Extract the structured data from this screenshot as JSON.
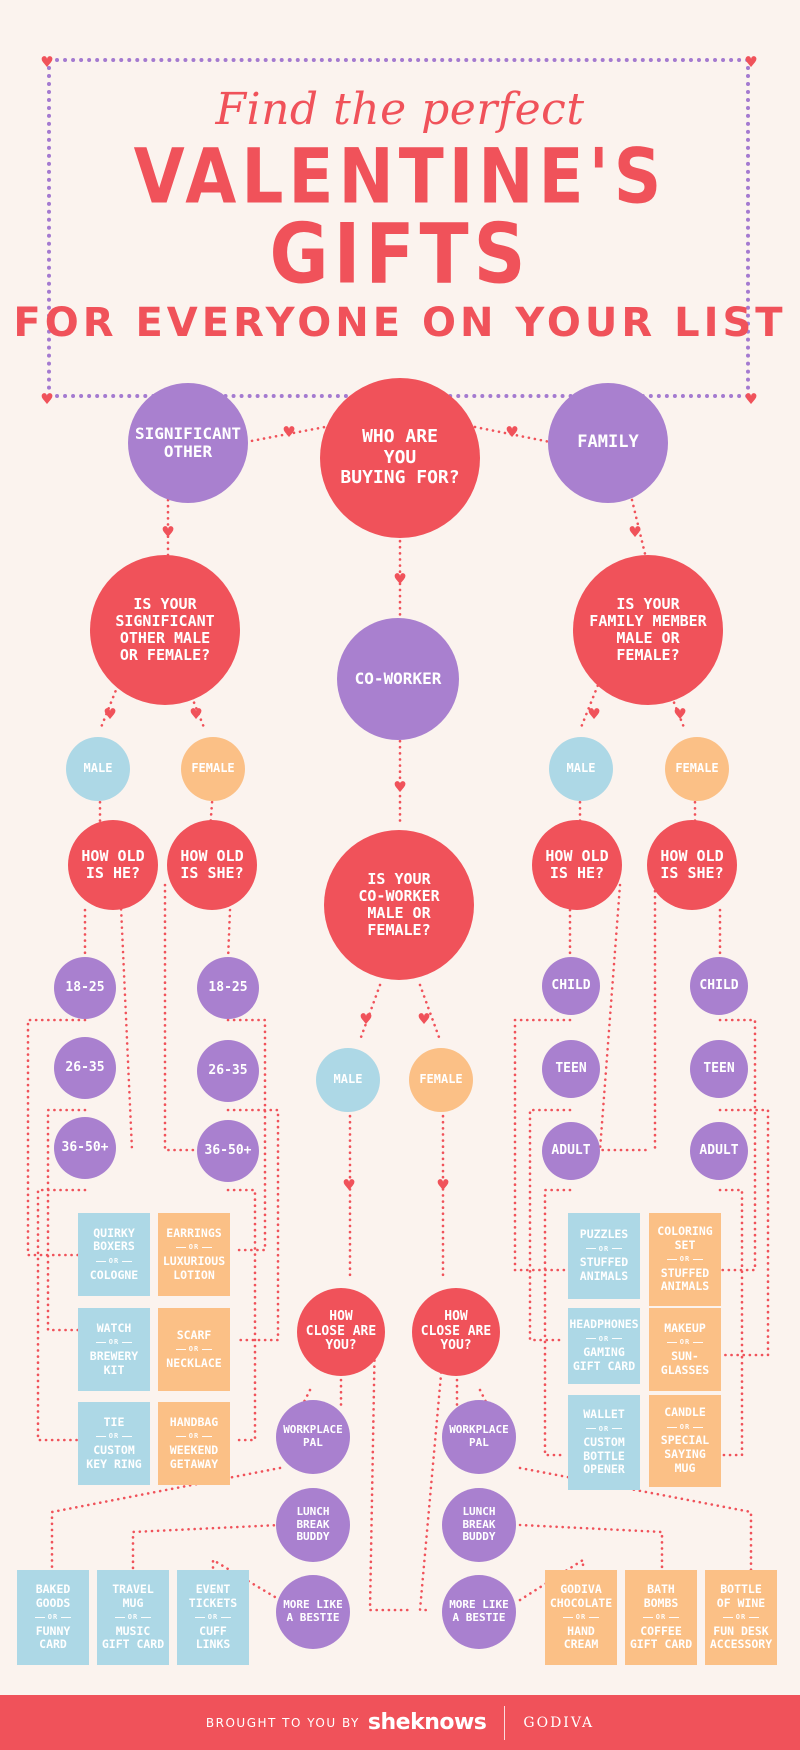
{
  "title": {
    "line1": "Find the perfect",
    "line2": "VALENTINE'S",
    "line3": "GIFTS",
    "line4": "FOR EVERYONE ON YOUR LIST"
  },
  "colors": {
    "red": "#f0525a",
    "purple": "#a980cf",
    "blue": "#add8e6",
    "orange": "#fbc086",
    "background": "#fbf3ee"
  },
  "nodes": {
    "start": "WHO ARE\nYOU\nBUYING FOR?",
    "significant_other": "SIGNIFICANT\nOTHER",
    "family": "FAMILY",
    "coworker": "CO-WORKER",
    "so_question": "IS YOUR\nSIGNIFICANT\nOTHER MALE\nOR FEMALE?",
    "family_question": "IS YOUR\nFAMILY MEMBER\nMALE OR\nFEMALE?",
    "coworker_question": "IS YOUR\nCO-WORKER\nMALE OR\nFEMALE?",
    "male": "MALE",
    "female": "FEMALE",
    "how_old_he": "HOW OLD\nIS HE?",
    "how_old_she": "HOW OLD\nIS SHE?",
    "age_18_25": "18-25",
    "age_26_35": "26-35",
    "age_36_50": "36-50+",
    "child": "CHILD",
    "teen": "TEEN",
    "adult": "ADULT",
    "how_close": "HOW\nCLOSE ARE\nYOU?",
    "workplace_pal": "WORKPLACE\nPAL",
    "lunch_buddy": "LUNCH\nBREAK\nBUDDY",
    "bestie": "MORE LIKE\nA BESTIE"
  },
  "or_label": "OR",
  "gifts": {
    "so_male": [
      {
        "a": "QUIRKY\nBOXERS",
        "b": "COLOGNE"
      },
      {
        "a": "WATCH",
        "b": "BREWERY\nKIT"
      },
      {
        "a": "TIE",
        "b": "CUSTOM\nKEY RING"
      }
    ],
    "so_female": [
      {
        "a": "EARRINGS",
        "b": "LUXURIOUS\nLOTION"
      },
      {
        "a": "SCARF",
        "b": "NECKLACE"
      },
      {
        "a": "HANDBAG",
        "b": "WEEKEND\nGETAWAY"
      }
    ],
    "family_male": [
      {
        "a": "PUZZLES",
        "b": "STUFFED\nANIMALS"
      },
      {
        "a": "HEADPHONES",
        "b": "GAMING\nGIFT CARD"
      },
      {
        "a": "WALLET",
        "b": "CUSTOM\nBOTTLE\nOPENER"
      }
    ],
    "family_female": [
      {
        "a": "COLORING\nSET",
        "b": "STUFFED\nANIMALS"
      },
      {
        "a": "MAKEUP",
        "b": "SUN-\nGLASSES"
      },
      {
        "a": "CANDLE",
        "b": "SPECIAL\nSAYING MUG"
      }
    ],
    "coworker_male": [
      {
        "a": "BAKED\nGOODS",
        "b": "FUNNY\nCARD"
      },
      {
        "a": "TRAVEL\nMUG",
        "b": "MUSIC\nGIFT CARD"
      },
      {
        "a": "EVENT\nTICKETS",
        "b": "CUFF\nLINKS"
      }
    ],
    "coworker_female": [
      {
        "a": "GODIVA\nCHOCOLATE",
        "b": "HAND\nCREAM"
      },
      {
        "a": "BATH\nBOMBS",
        "b": "COFFEE\nGIFT CARD"
      },
      {
        "a": "BOTTLE\nOF WINE",
        "b": "FUN DESK\nACCESSORY"
      }
    ]
  },
  "footer": {
    "brought_by": "BROUGHT TO YOU BY",
    "brand1": "sheknows",
    "brand2": "GODIVA"
  }
}
